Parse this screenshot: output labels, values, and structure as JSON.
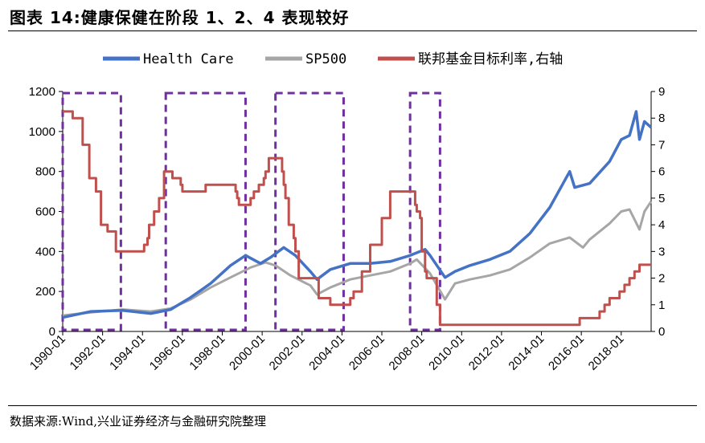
{
  "header": {
    "title": "图表 14:健康保健在阶段 1、2、4 表现较好"
  },
  "footer": {
    "source": "数据来源:Wind,兴业证券经济与金融研究院整理"
  },
  "colors": {
    "health_care": "#4472C4",
    "sp500": "#A6A6A6",
    "fed_rate": "#C0504D",
    "phase_box": "#7030A0"
  },
  "chart_data": {
    "type": "line",
    "title": "健康保健在阶段 1、2、4 表现较好",
    "x_tick_labels": [
      "1990-01",
      "1992-01",
      "1994-01",
      "1996-01",
      "1998-01",
      "2000-01",
      "2002-01",
      "2004-01",
      "2006-01",
      "2008-01",
      "2010-01",
      "2012-01",
      "2014-01",
      "2016-01",
      "2018-01"
    ],
    "x_range": [
      "1990-01",
      "2019-07"
    ],
    "y_left": {
      "range": [
        0,
        1200
      ],
      "ticks": [
        0,
        200,
        400,
        600,
        800,
        1000,
        1200
      ]
    },
    "y_right": {
      "range": [
        0,
        9
      ],
      "ticks": [
        0,
        1,
        2,
        3,
        4,
        5,
        6,
        7,
        8,
        9
      ],
      "label": "右轴"
    },
    "grid": false,
    "legend_position": "top",
    "series": [
      {
        "name": "Health Care",
        "axis": "left",
        "x": [
          "1990-01",
          "1991-06",
          "1993-01",
          "1994-06",
          "1995-06",
          "1996-06",
          "1997-06",
          "1998-06",
          "1999-03",
          "1999-12",
          "2000-06",
          "2001-02",
          "2001-09",
          "2002-06",
          "2002-10",
          "2003-06",
          "2004-06",
          "2005-06",
          "2006-06",
          "2007-06",
          "2008-03",
          "2008-06",
          "2009-03",
          "2009-09",
          "2010-06",
          "2011-06",
          "2012-06",
          "2013-06",
          "2014-06",
          "2015-06",
          "2015-09",
          "2016-06",
          "2017-06",
          "2018-01",
          "2018-06",
          "2018-10",
          "2018-12",
          "2019-03",
          "2019-07"
        ],
        "values": [
          70,
          100,
          105,
          90,
          110,
          170,
          240,
          330,
          380,
          340,
          370,
          420,
          380,
          300,
          260,
          310,
          340,
          340,
          350,
          380,
          410,
          380,
          270,
          300,
          330,
          360,
          400,
          490,
          620,
          800,
          720,
          740,
          850,
          960,
          980,
          1100,
          960,
          1050,
          1020
        ]
      },
      {
        "name": "SP500",
        "axis": "left",
        "x": [
          "1990-01",
          "1991-06",
          "1993-01",
          "1994-06",
          "1995-06",
          "1996-06",
          "1997-06",
          "1998-06",
          "1999-06",
          "2000-03",
          "2000-09",
          "2001-06",
          "2002-06",
          "2002-10",
          "2003-06",
          "2004-06",
          "2005-06",
          "2006-06",
          "2007-06",
          "2007-10",
          "2008-06",
          "2009-03",
          "2009-09",
          "2010-06",
          "2011-06",
          "2012-06",
          "2013-06",
          "2014-06",
          "2015-06",
          "2016-02",
          "2016-06",
          "2017-06",
          "2018-01",
          "2018-06",
          "2018-12",
          "2019-03",
          "2019-07"
        ],
        "values": [
          80,
          95,
          110,
          100,
          115,
          160,
          220,
          270,
          320,
          345,
          330,
          280,
          230,
          185,
          220,
          260,
          280,
          300,
          340,
          360,
          290,
          160,
          240,
          260,
          280,
          310,
          370,
          440,
          470,
          420,
          460,
          540,
          600,
          610,
          510,
          600,
          650
        ]
      },
      {
        "name": "联邦基金目标利率",
        "axis": "right",
        "x": [
          "1990-01",
          "1990-07",
          "1991-01",
          "1991-05",
          "1991-09",
          "1991-12",
          "1992-04",
          "1992-09",
          "1994-02",
          "1994-04",
          "1994-05",
          "1994-08",
          "1994-11",
          "1995-02",
          "1995-07",
          "1995-12",
          "1996-01",
          "1997-03",
          "1998-09",
          "1998-10",
          "1998-11",
          "1999-06",
          "1999-08",
          "1999-11",
          "2000-02",
          "2000-03",
          "2000-05",
          "2001-01",
          "2001-02",
          "2001-03",
          "2001-05",
          "2001-08",
          "2001-09",
          "2001-11",
          "2002-11",
          "2003-06",
          "2004-06",
          "2004-08",
          "2005-01",
          "2005-06",
          "2006-01",
          "2006-06",
          "2007-09",
          "2007-10",
          "2007-12",
          "2008-01",
          "2008-03",
          "2008-04",
          "2008-10",
          "2008-12",
          "2015-12",
          "2016-12",
          "2017-03",
          "2017-06",
          "2017-12",
          "2018-03",
          "2018-06",
          "2018-09",
          "2018-12",
          "2019-07"
        ],
        "values": [
          8.25,
          8.0,
          7.0,
          5.75,
          5.25,
          4.0,
          3.75,
          3.0,
          3.25,
          3.5,
          4.0,
          4.5,
          5.0,
          6.0,
          5.75,
          5.5,
          5.25,
          5.5,
          5.25,
          5.0,
          4.75,
          5.0,
          5.25,
          5.5,
          5.75,
          6.0,
          6.5,
          6.0,
          5.5,
          5.0,
          4.0,
          3.5,
          3.0,
          2.0,
          1.25,
          1.0,
          1.25,
          1.5,
          2.25,
          3.25,
          4.25,
          5.25,
          4.75,
          4.5,
          4.25,
          3.0,
          2.25,
          2.0,
          1.0,
          0.25,
          0.5,
          0.75,
          1.0,
          1.25,
          1.5,
          1.75,
          2.0,
          2.25,
          2.5,
          2.5
        ]
      }
    ],
    "phase_boxes": [
      [
        "1990-01",
        "1992-12"
      ],
      [
        "1995-03",
        "1999-03"
      ],
      [
        "2000-09",
        "2004-02"
      ],
      [
        "2007-06",
        "2008-12"
      ]
    ]
  }
}
